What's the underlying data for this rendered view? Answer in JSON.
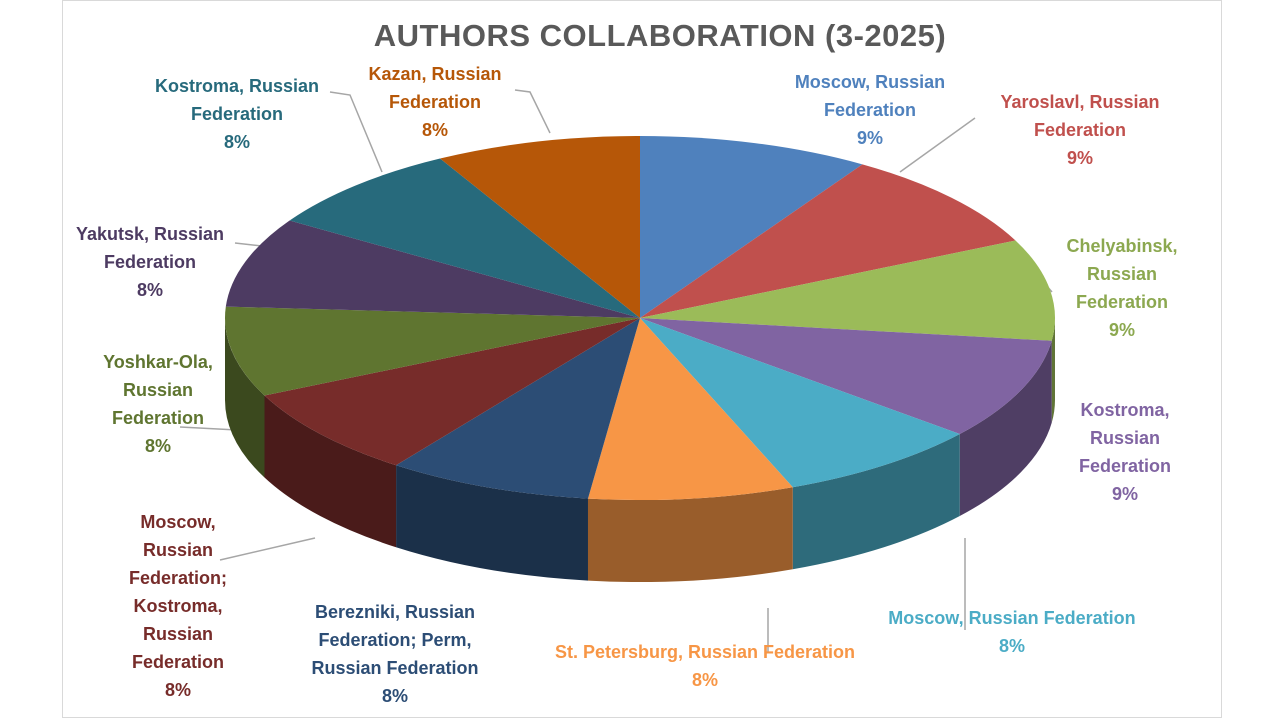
{
  "chart_data": {
    "type": "pie",
    "title": "AUTHORS COLLABORATION (3-2025)",
    "categories": [
      "Moscow, Russian Federation",
      "Yaroslavl, Russian Federation",
      "Chelyabinsk, Russian Federation",
      "Kostroma, Russian Federation",
      "Moscow, Russian Federation",
      "St. Petersburg, Russian Federation",
      "Berezniki, Russian Federation; Perm, Russian Federation",
      "Moscow, Russian Federation; Kostroma, Russian Federation",
      "Yoshkar-Ola, Russian Federation",
      "Yakutsk, Russian Federation",
      "Kostroma, Russian Federation",
      "Kazan, Russian Federation"
    ],
    "values": [
      9,
      9,
      9,
      9,
      8,
      8,
      8,
      8,
      8,
      8,
      8,
      8
    ],
    "value_labels": [
      "9%",
      "9%",
      "9%",
      "9%",
      "8%",
      "8%",
      "8%",
      "8%",
      "8%",
      "8%",
      "8%",
      "8%"
    ],
    "colors": [
      "#4f81bd",
      "#c0504d",
      "#9bbb59",
      "#8064a2",
      "#4bacc6",
      "#f79646",
      "#2c4d75",
      "#772c2a",
      "#5f7530",
      "#4d3b62",
      "#276a7c",
      "#b65708"
    ]
  }
}
